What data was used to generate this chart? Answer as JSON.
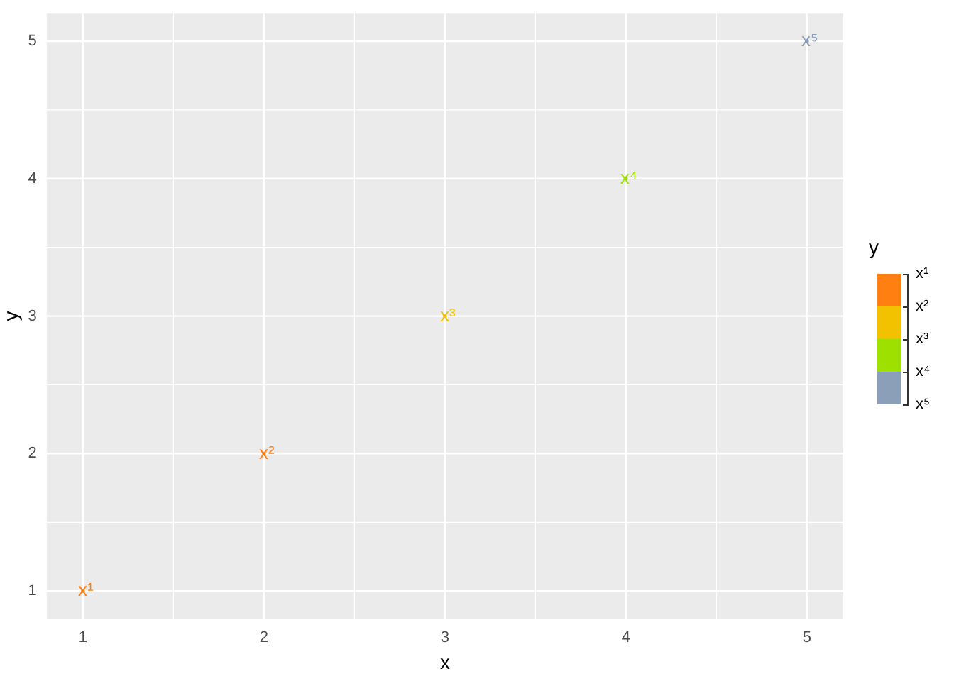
{
  "chart_data": {
    "type": "scatter",
    "xlabel": "x",
    "ylabel": "y",
    "clabel": "y",
    "x": [
      1,
      2,
      3,
      4,
      5
    ],
    "values": [
      1,
      2,
      3,
      4,
      5
    ],
    "colors": [
      "#ff7f11",
      "#ff7f11",
      "#f2c200",
      "#9ee000",
      "#8c9fb8"
    ],
    "value_labels": [
      "x¹",
      "x²",
      "x³",
      "x⁴",
      "x⁵"
    ],
    "marker": "circle",
    "clim": [
      1,
      5
    ],
    "cticks": [
      {
        "value": 1,
        "label": "x¹"
      },
      {
        "value": 2,
        "label": "x²"
      },
      {
        "value": 3,
        "label": "x³"
      },
      {
        "value": 4,
        "label": "x⁴"
      },
      {
        "value": 5,
        "label": "x⁵"
      }
    ],
    "xlim": [
      0.8,
      5.2
    ],
    "ylim": [
      0.8,
      5.2
    ],
    "xticks": [
      1,
      2,
      3,
      4,
      5
    ],
    "yticks": [
      1,
      2,
      3,
      4,
      5
    ],
    "grid": true
  }
}
